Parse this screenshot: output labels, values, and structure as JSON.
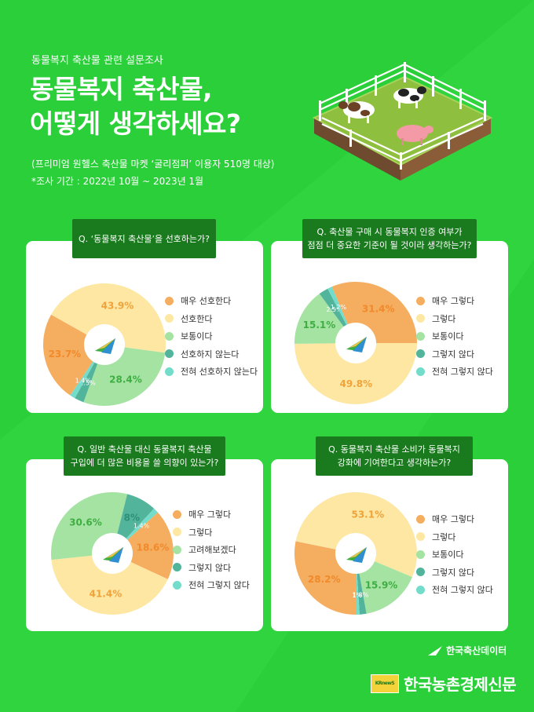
{
  "header": {
    "subtitle": "동물복지 축산물 관련 설문조사",
    "title_line1": "동물복지 축산물,",
    "title_line2": "어떻게 생각하세요?",
    "note1": "(프리미엄 원헬스 축산물 마켓 ‘굴리점퍼’ 이용자 510명 대상)",
    "note2": "*조사 기간 : 2022년 10월 ~ 2023년 1월"
  },
  "chart_data": [
    {
      "type": "pie",
      "question_lines": [
        "Q. ‘동물복지 축산물’을 선호하는가?"
      ],
      "categories": [
        "매우 선호한다",
        "선호한다",
        "보통이다",
        "선호하지 않는다",
        "전혀 선호하지 않는다"
      ],
      "values": [
        23.7,
        43.9,
        28.4,
        2.5,
        1.4
      ],
      "labels": [
        "23.7%",
        "43.9%",
        "28.4%",
        "2.5%",
        "1.4%"
      ],
      "colors": [
        "#f5ad60",
        "#fde7a3",
        "#a5e3a3",
        "#52b49a",
        "#74dccb"
      ],
      "start_angle": 124,
      "legend_position": "right"
    },
    {
      "type": "pie",
      "question_lines": [
        "Q. 축산물 구매 시 동물복지 인증 여부가",
        "점점 더 중요한 기준이 될 것이라 생각하는가?"
      ],
      "categories": [
        "매우 그렇다",
        "그렇다",
        "보통이다",
        "그렇지 않다",
        "전혀 그렇지 않다"
      ],
      "values": [
        31.4,
        49.8,
        15.1,
        2.5,
        1.2
      ],
      "labels": [
        "31.4%",
        "49.8%",
        "15.1%",
        "2.5%",
        "1.2%"
      ],
      "colors": [
        "#f5ad60",
        "#fde7a3",
        "#a5e3a3",
        "#52b49a",
        "#74dccb"
      ],
      "start_angle": -113,
      "legend_position": "right"
    },
    {
      "type": "pie",
      "question_lines": [
        "Q. 일반 축산물 대신 동물복지 축산물",
        "구입에 더 많은 비용을 쓸 의향이 있는가?"
      ],
      "categories": [
        "매우 그렇다",
        "그렇다",
        "고려해보겠다",
        "그렇지 않다",
        "전혀 그렇지 않다"
      ],
      "values": [
        18.6,
        41.4,
        30.6,
        8,
        1.4
      ],
      "labels": [
        "18.6%",
        "41.4%",
        "30.6%",
        "8%",
        "1.4%"
      ],
      "colors": [
        "#f5ad60",
        "#fde7a3",
        "#a5e3a3",
        "#52b49a",
        "#74dccb"
      ],
      "start_angle": -42,
      "legend_position": "right"
    },
    {
      "type": "pie",
      "question_lines": [
        "Q.  동물복지 축산물 소비가 동물복지",
        "강화에 기여한다고 생각하는가?"
      ],
      "categories": [
        "매우 그렇다",
        "그렇다",
        "보통이다",
        "그렇지 않다",
        "전혀 그렇지 않다"
      ],
      "values": [
        28.2,
        53.1,
        15.9,
        1.8,
        1.0
      ],
      "labels": [
        "28.2%",
        "53.1%",
        "15.9%",
        "1.8%",
        "1%"
      ],
      "colors": [
        "#f5ad60",
        "#fde7a3",
        "#a5e3a3",
        "#52b49a",
        "#74dccb"
      ],
      "start_angle": 90,
      "legend_position": "right"
    }
  ],
  "footer": {
    "brand_small": "한국축산데이터",
    "brand_large": "한국농촌경제신문",
    "news_logo_text": "KRnewS"
  }
}
